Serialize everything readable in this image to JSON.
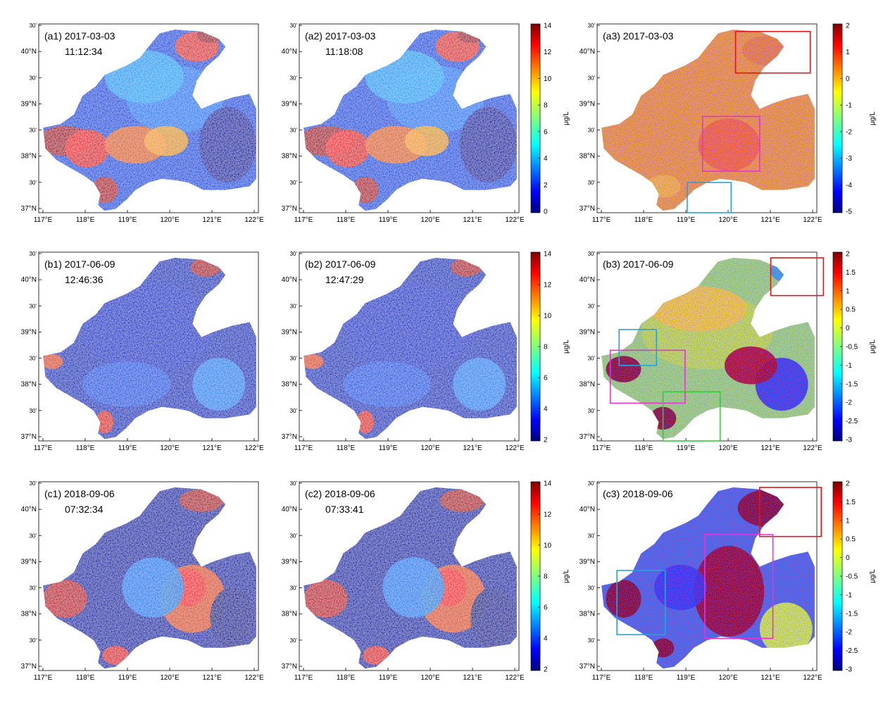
{
  "lon_labels": [
    "117°E",
    "118°E",
    "119°E",
    "120°E",
    "121°E",
    "122°E"
  ],
  "lat_labels": [
    "37°N",
    "30'",
    "38°N",
    "30'",
    "39°N",
    "30'",
    "40°N",
    "30'"
  ],
  "colorbar_unit": "μg/L",
  "colors": {
    "land": "#ffffff",
    "box_red": "#e0151b",
    "box_magenta": "#e633d4",
    "box_cyan": "#27a3d8",
    "box_green": "#38c93a"
  },
  "panels": [
    {
      "id": "a1",
      "title": "(a1) 2017-03-03",
      "time": "11:12:34",
      "kind": "chl",
      "pattern": "a"
    },
    {
      "id": "a2",
      "title": "(a2) 2017-03-03",
      "time": "11:18:08",
      "kind": "chl",
      "pattern": "a"
    },
    {
      "id": "a3",
      "title": "(a3) 2017-03-03",
      "time": "",
      "kind": "diff",
      "pattern": "a"
    },
    {
      "id": "b1",
      "title": "(b1) 2017-06-09",
      "time": "12:46:36",
      "kind": "chl",
      "pattern": "b"
    },
    {
      "id": "b2",
      "title": "(b2) 2017-06-09",
      "time": "12:47:29",
      "kind": "chl",
      "pattern": "b"
    },
    {
      "id": "b3",
      "title": "(b3) 2017-06-09",
      "time": "",
      "kind": "diff",
      "pattern": "b"
    },
    {
      "id": "c1",
      "title": "(c1) 2018-09-06",
      "time": "07:32:34",
      "kind": "chl",
      "pattern": "c"
    },
    {
      "id": "c2",
      "title": "(c2) 2018-09-06",
      "time": "07:33:41",
      "kind": "chl",
      "pattern": "c"
    },
    {
      "id": "c3",
      "title": "(c3) 2018-09-06",
      "time": "",
      "kind": "diff",
      "pattern": "c"
    }
  ],
  "colorbars": [
    {
      "panel": "a2",
      "ticks": [
        "14",
        "12",
        "10",
        "8",
        "6",
        "4",
        "2",
        "0"
      ]
    },
    {
      "panel": "a3",
      "ticks": [
        "2",
        "1",
        "0",
        "-1",
        "-2",
        "-3",
        "-4",
        "-5"
      ]
    },
    {
      "panel": "b2",
      "ticks": [
        "14",
        "12",
        "10",
        "8",
        "6",
        "4",
        "2"
      ]
    },
    {
      "panel": "b3",
      "ticks": [
        "2",
        "1.5",
        "1",
        "0.5",
        "0",
        "-0.5",
        "-1",
        "-1.5",
        "-2",
        "-2.5",
        "-3"
      ]
    },
    {
      "panel": "c2",
      "ticks": [
        "14",
        "12",
        "10",
        "8",
        "6",
        "4",
        "2"
      ]
    },
    {
      "panel": "c3",
      "ticks": [
        "2",
        "1.5",
        "1",
        "0.5",
        "0",
        "-0.5",
        "-1",
        "-1.5",
        "-2",
        "-2.5",
        "-3"
      ]
    }
  ],
  "region_boxes": {
    "a3": [
      "red",
      "magenta",
      "cyan"
    ],
    "b3": [
      "red",
      "cyan",
      "magenta",
      "green"
    ],
    "c3": [
      "red",
      "magenta",
      "cyan"
    ]
  }
}
